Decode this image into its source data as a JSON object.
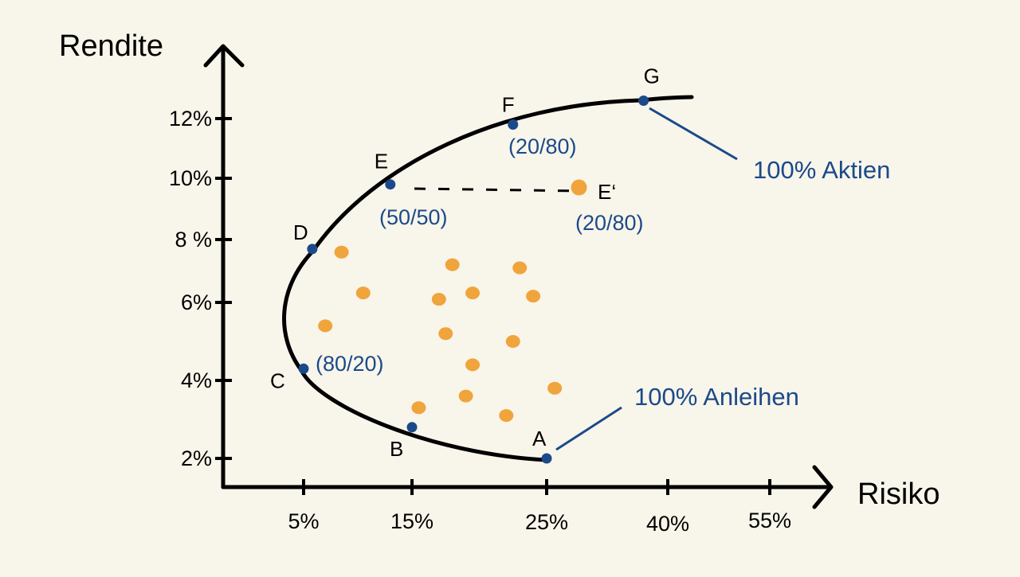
{
  "chart_data": {
    "type": "scatter",
    "xlabel": "Risiko",
    "ylabel": "Rendite",
    "x_ticks": [
      "5%",
      "15%",
      "25%",
      "40%",
      "55%"
    ],
    "y_ticks": [
      "2%",
      "4%",
      "6%",
      "8 %",
      "10%",
      "12%"
    ],
    "frontier_points": [
      {
        "label": "A",
        "x": 25,
        "y": 2
      },
      {
        "label": "B",
        "x": 15,
        "y": 2.8
      },
      {
        "label": "C",
        "x": 5,
        "y": 4.3
      },
      {
        "label": "D",
        "x": 5.8,
        "y": 7.7
      },
      {
        "label": "E",
        "x": 13,
        "y": 9.8
      },
      {
        "label": "F",
        "x": 22.5,
        "y": 11.8
      },
      {
        "label": "G",
        "x": 37,
        "y": 12.6
      }
    ],
    "point_annotations": [
      {
        "point": "C",
        "text": "(80/20)"
      },
      {
        "point": "E",
        "text": "(50/50)"
      },
      {
        "point": "F",
        "text": "(20/80)"
      },
      {
        "point": "E'",
        "text": "(20/80)"
      }
    ],
    "e_prime": {
      "label": "E‘",
      "x": 29,
      "y": 9.7
    },
    "callouts": [
      {
        "point": "G",
        "text": "100% Aktien"
      },
      {
        "point": "A",
        "text": "100% Anleihen"
      }
    ],
    "portfolio_dots": [
      {
        "x": 8.5,
        "y": 7.6
      },
      {
        "x": 18,
        "y": 7.2
      },
      {
        "x": 23,
        "y": 7.1
      },
      {
        "x": 10.5,
        "y": 6.3
      },
      {
        "x": 17,
        "y": 6.1
      },
      {
        "x": 19.5,
        "y": 6.3
      },
      {
        "x": 24,
        "y": 6.2
      },
      {
        "x": 7,
        "y": 5.4
      },
      {
        "x": 17.5,
        "y": 5.2
      },
      {
        "x": 22.5,
        "y": 5.0
      },
      {
        "x": 19.5,
        "y": 4.4
      },
      {
        "x": 26,
        "y": 3.8
      },
      {
        "x": 15.5,
        "y": 3.3
      },
      {
        "x": 19,
        "y": 3.6
      },
      {
        "x": 22,
        "y": 3.1
      }
    ],
    "colors": {
      "curve": "#000000",
      "frontier_point": "#1b4a8a",
      "annotation": "#1b4a8a",
      "dot": "#f0a43c",
      "background": "#f8f5ea"
    }
  }
}
